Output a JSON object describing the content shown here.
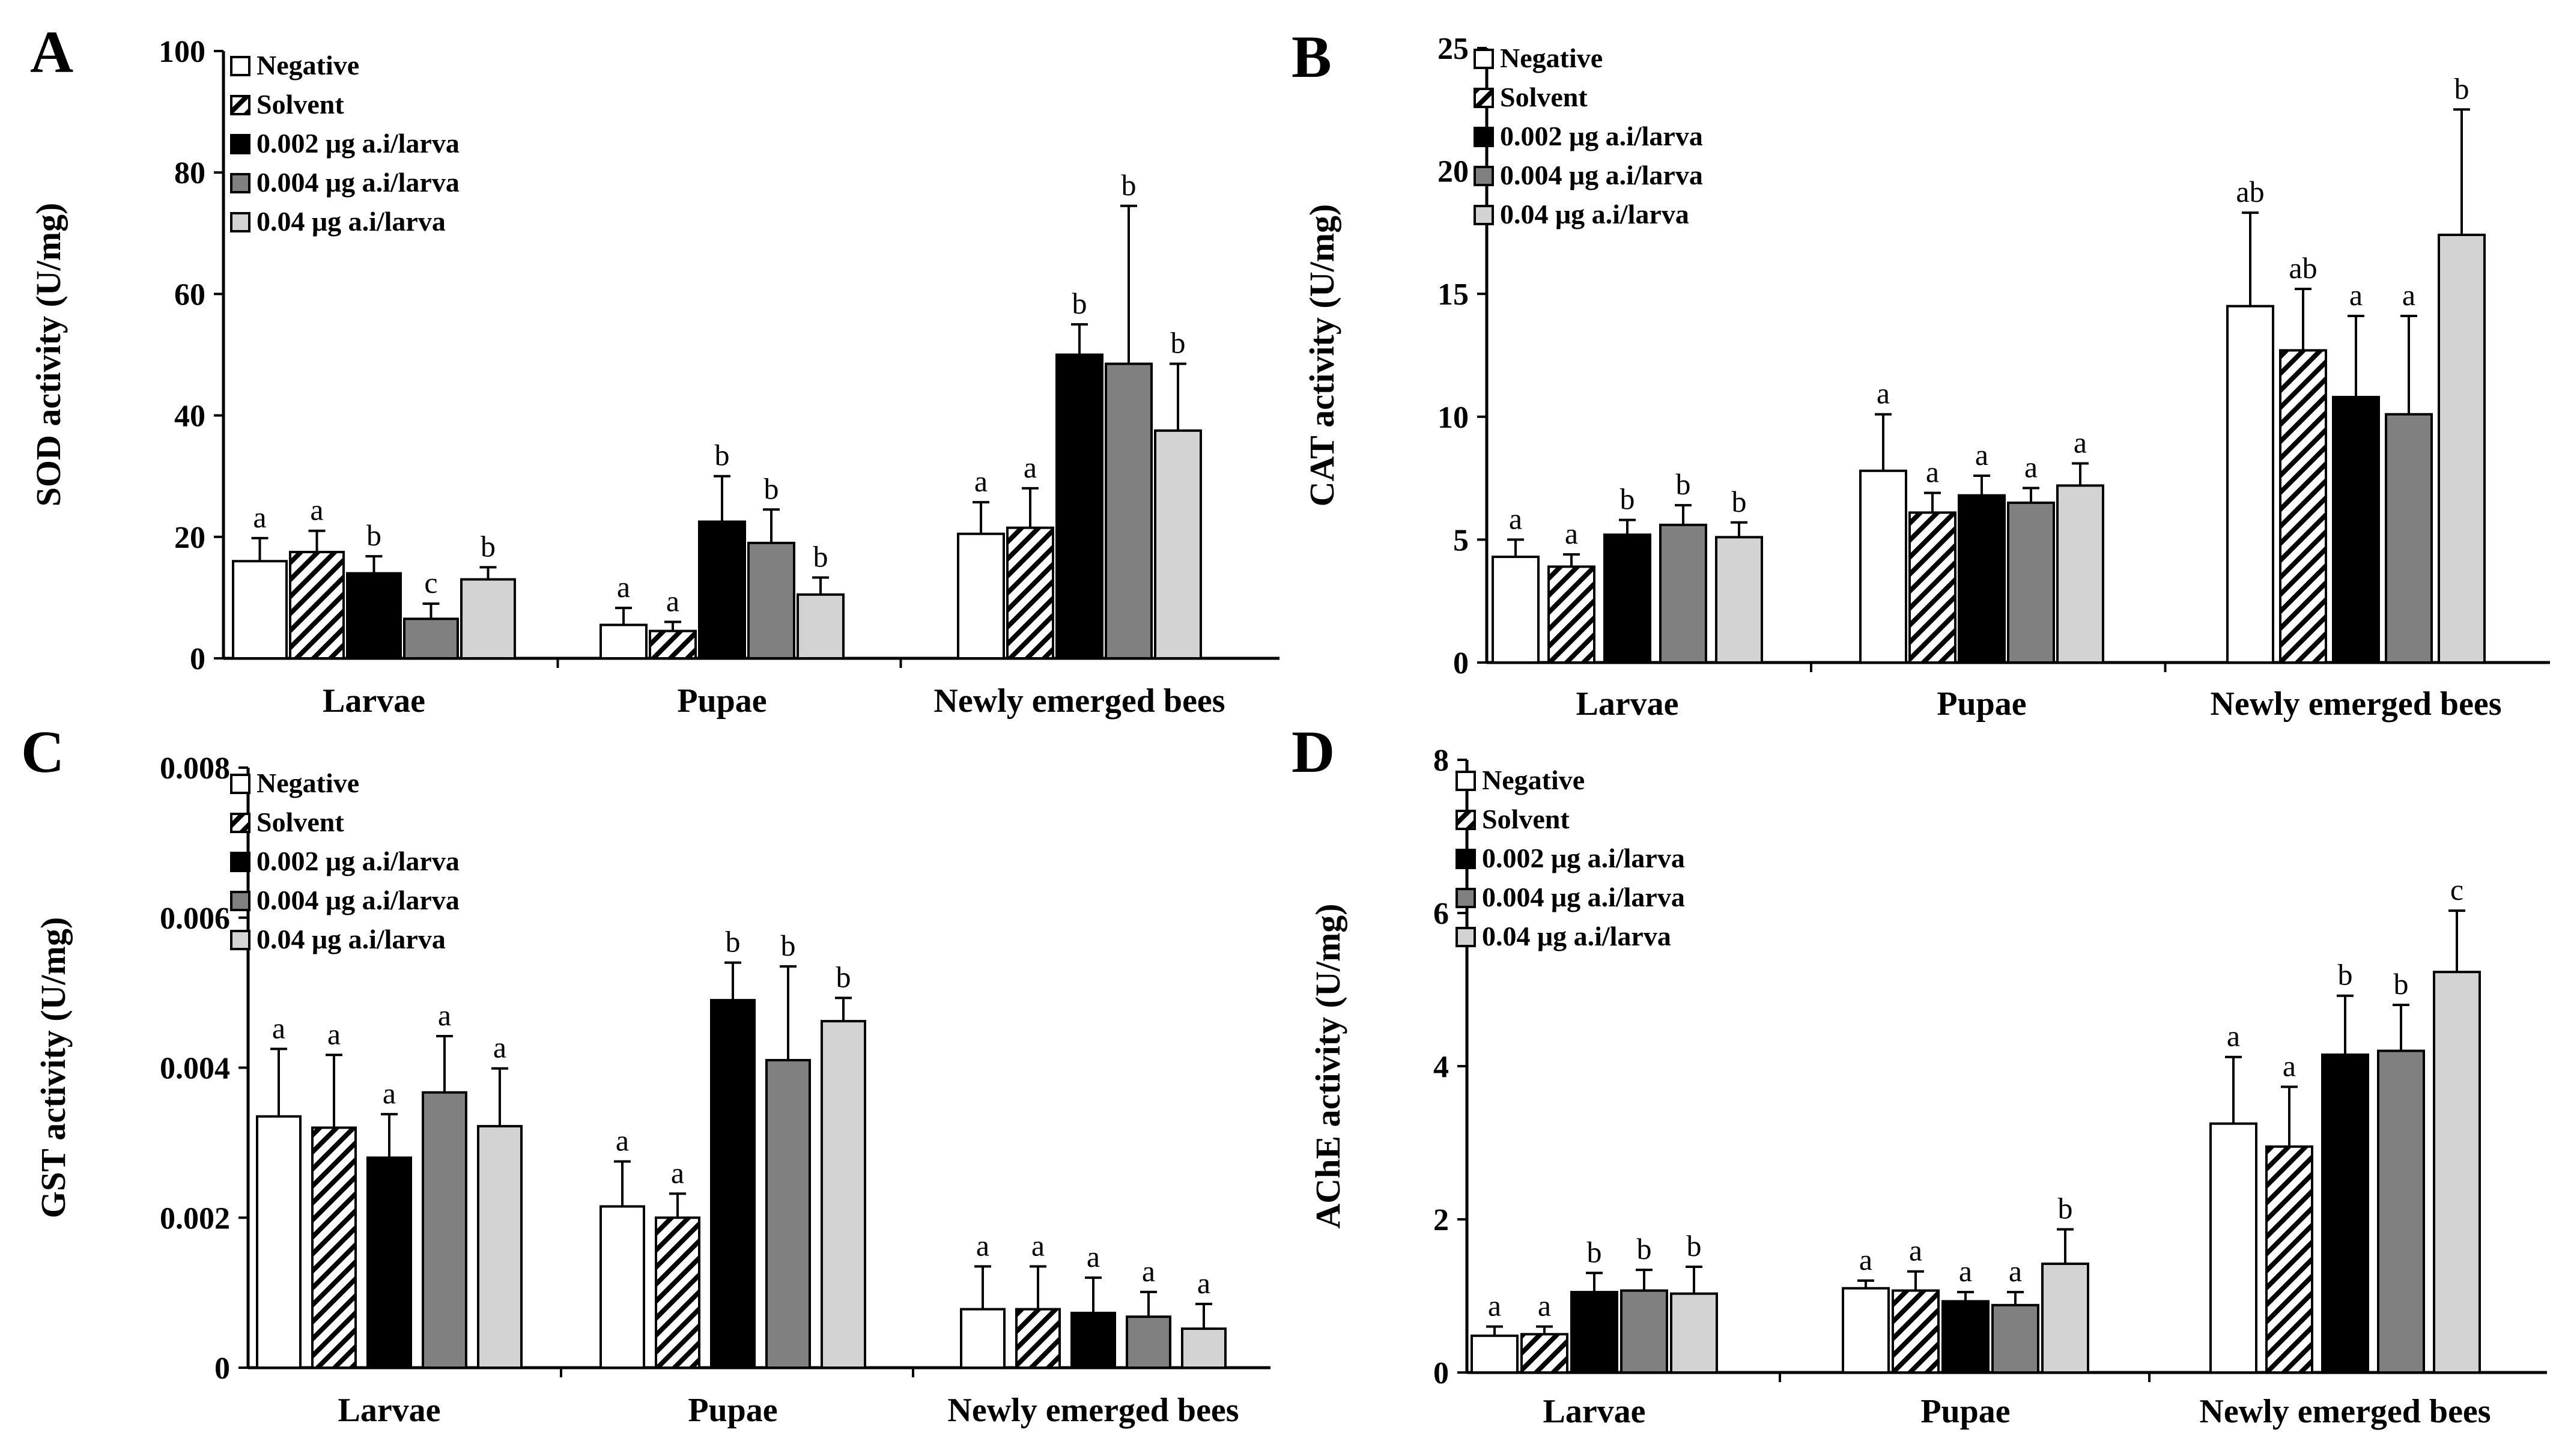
{
  "figure": {
    "legend_labels": [
      "Negative",
      "Solvent",
      "0.002 μg a.i/larva",
      "0.004 μg a.i/larva",
      "0.04 μg a.i/larva"
    ],
    "series_styles": [
      {
        "name": "Negative",
        "fill": "#ffffff",
        "hatch": false
      },
      {
        "name": "Solvent",
        "fill": "#ffffff",
        "hatch": true
      },
      {
        "name": "0.002 μg a.i/larva",
        "fill": "#000000",
        "hatch": false
      },
      {
        "name": "0.004 μg a.i/larva",
        "fill": "#808080",
        "hatch": false
      },
      {
        "name": "0.04 μg a.i/larva",
        "fill": "#d3d3d3",
        "hatch": false
      }
    ]
  },
  "chart_data": [
    {
      "panel": "A",
      "type": "bar",
      "ylabel": "SOD activity (U/mg)",
      "categories": [
        "Larvae",
        "Pupae",
        "Newly emerged bees"
      ],
      "ylim": [
        0,
        100
      ],
      "yticks": [
        "0",
        "20",
        "40",
        "60",
        "80",
        "100"
      ],
      "series": [
        {
          "name": "Negative",
          "values": [
            16,
            5.5,
            20.5
          ],
          "errors": [
            3.8,
            2.8,
            5.2
          ],
          "letters": [
            "a",
            "a",
            "a"
          ]
        },
        {
          "name": "Solvent",
          "values": [
            17.5,
            4.5,
            21.5
          ],
          "errors": [
            3.5,
            1.5,
            6.5
          ],
          "letters": [
            "a",
            "a",
            "a"
          ]
        },
        {
          "name": "0.002 μg a.i/larva",
          "values": [
            14,
            22.5,
            50
          ],
          "errors": [
            2.8,
            7.5,
            5
          ],
          "letters": [
            "b",
            "b",
            "b"
          ]
        },
        {
          "name": "0.004 μg a.i/larva",
          "values": [
            6.5,
            19,
            48.5
          ],
          "errors": [
            2.5,
            5.5,
            26
          ],
          "letters": [
            "c",
            "b",
            "b"
          ]
        },
        {
          "name": "0.04 μg a.i/larva",
          "values": [
            13,
            10.5,
            37.5
          ],
          "errors": [
            2,
            2.8,
            11
          ],
          "letters": [
            "b",
            "b",
            "b"
          ]
        }
      ]
    },
    {
      "panel": "B",
      "type": "bar",
      "ylabel": "CAT activity (U/mg)",
      "categories": [
        "Larvae",
        "Pupae",
        "Newly emerged bees"
      ],
      "ylim": [
        0,
        25
      ],
      "yticks": [
        "0",
        "5",
        "10",
        "15",
        "20",
        "25"
      ],
      "series": [
        {
          "name": "Negative",
          "values": [
            4.3,
            7.8,
            14.5
          ],
          "errors": [
            0.7,
            2.3,
            3.8
          ],
          "letters": [
            "a",
            "a",
            "ab"
          ]
        },
        {
          "name": "Solvent",
          "values": [
            3.9,
            6.1,
            12.7
          ],
          "errors": [
            0.5,
            0.8,
            2.5
          ],
          "letters": [
            "a",
            "a",
            "ab"
          ]
        },
        {
          "name": "0.002 μg a.i/larva",
          "values": [
            5.2,
            6.8,
            10.8
          ],
          "errors": [
            0.6,
            0.8,
            3.3
          ],
          "letters": [
            "b",
            "a",
            "a"
          ]
        },
        {
          "name": "0.004 μg a.i/larva",
          "values": [
            5.6,
            6.5,
            10.1
          ],
          "errors": [
            0.8,
            0.6,
            4
          ],
          "letters": [
            "b",
            "a",
            "a"
          ]
        },
        {
          "name": "0.04 μg a.i/larva",
          "values": [
            5.1,
            7.2,
            17.4
          ],
          "errors": [
            0.6,
            0.9,
            5.1
          ],
          "letters": [
            "b",
            "a",
            "b"
          ]
        }
      ]
    },
    {
      "panel": "C",
      "type": "bar",
      "ylabel": "GST activity (U/mg)",
      "categories": [
        "Larvae",
        "Pupae",
        "Newly emerged bees"
      ],
      "ylim": [
        0,
        0.008
      ],
      "yticks": [
        "0",
        "0.002",
        "0.004",
        "0.006",
        "0.008"
      ],
      "series": [
        {
          "name": "Negative",
          "values": [
            0.00335,
            0.00215,
            0.00078
          ],
          "errors": [
            0.0009,
            0.0006,
            0.00057
          ],
          "letters": [
            "a",
            "a",
            "a"
          ]
        },
        {
          "name": "Solvent",
          "values": [
            0.0032,
            0.002,
            0.00078
          ],
          "errors": [
            0.00097,
            0.00032,
            0.00057
          ],
          "letters": [
            "a",
            "a",
            "a"
          ]
        },
        {
          "name": "0.002 μg a.i/larva",
          "values": [
            0.0028,
            0.0049,
            0.00073
          ],
          "errors": [
            0.00058,
            0.0005,
            0.00047
          ],
          "letters": [
            "a",
            "b",
            "a"
          ]
        },
        {
          "name": "0.004 μg a.i/larva",
          "values": [
            0.00367,
            0.0041,
            0.00068
          ],
          "errors": [
            0.00075,
            0.00125,
            0.00033
          ],
          "letters": [
            "a",
            "b",
            "a"
          ]
        },
        {
          "name": "0.04 μg a.i/larva",
          "values": [
            0.00322,
            0.00462,
            0.00052
          ],
          "errors": [
            0.00077,
            0.00031,
            0.00033
          ],
          "letters": [
            "a",
            "b",
            "a"
          ]
        }
      ]
    },
    {
      "panel": "D",
      "type": "bar",
      "ylabel": "AChE activity (U/mg)",
      "categories": [
        "Larvae",
        "Pupae",
        "Newly emerged bees"
      ],
      "ylim": [
        0,
        8
      ],
      "yticks": [
        "0",
        "2",
        "4",
        "6",
        "8"
      ],
      "series": [
        {
          "name": "Negative",
          "values": [
            0.48,
            1.1,
            3.25
          ],
          "errors": [
            0.12,
            0.1,
            0.87
          ],
          "letters": [
            "a",
            "a",
            "a"
          ]
        },
        {
          "name": "Solvent",
          "values": [
            0.5,
            1.07,
            2.95
          ],
          "errors": [
            0.1,
            0.25,
            0.78
          ],
          "letters": [
            "a",
            "a",
            "a"
          ]
        },
        {
          "name": "0.002 μg a.i/larva",
          "values": [
            1.05,
            0.93,
            4.15
          ],
          "errors": [
            0.25,
            0.12,
            0.77
          ],
          "letters": [
            "b",
            "a",
            "b"
          ]
        },
        {
          "name": "0.004 μg a.i/larva",
          "values": [
            1.07,
            0.88,
            4.2
          ],
          "errors": [
            0.27,
            0.17,
            0.6
          ],
          "letters": [
            "b",
            "a",
            "b"
          ]
        },
        {
          "name": "0.04 μg a.i/larva",
          "values": [
            1.03,
            1.42,
            5.23
          ],
          "errors": [
            0.35,
            0.45,
            0.8
          ],
          "letters": [
            "b",
            "b",
            "c"
          ]
        }
      ]
    }
  ]
}
